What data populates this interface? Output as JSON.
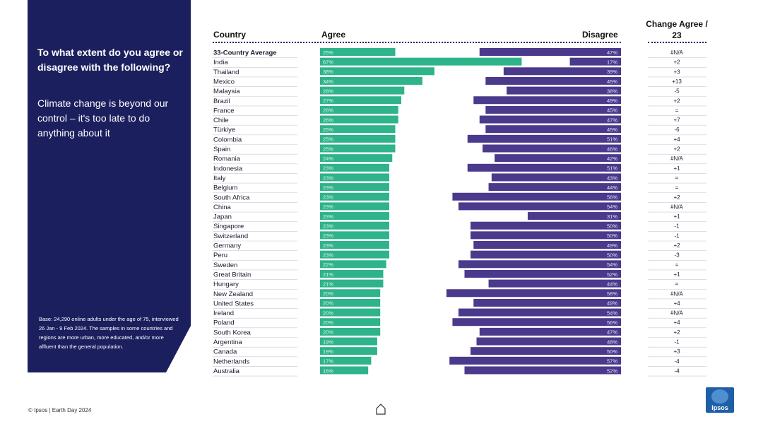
{
  "panel": {
    "question": "To what extent do you agree or disagree with the following?",
    "statement": "Climate change is beyond our control – it's too late to do anything about it",
    "base_note": "Base: 24,290 online adults under the age of 75, interviewed 26 Jan - 9 Feb 2024. The samples in some countries and regions are more urban, more educated, and/or more affluent than the general population."
  },
  "headers": {
    "country": "Country",
    "agree": "Agree",
    "disagree": "Disagree",
    "change": "Change Agree / 23"
  },
  "colors": {
    "agree": "#2fb38a",
    "disagree": "#4b3a8c",
    "panel": "#1b1f5e"
  },
  "footer": {
    "source": "© Ipsos | Earth Day 2024",
    "logo": "Ipsos"
  },
  "icons": {
    "home": "home-icon"
  },
  "chart_data": {
    "type": "bar",
    "x_range": [
      0,
      100
    ],
    "categories": [
      "33-Country Average",
      "India",
      "Thailand",
      "Mexico",
      "Malaysia",
      "Brazil",
      "France",
      "Chile",
      "Türkiye",
      "Colombia",
      "Spain",
      "Romania",
      "Indonesia",
      "Italy",
      "Belgium",
      "South Africa",
      "China",
      "Japan",
      "Singapore",
      "Switzerland",
      "Germany",
      "Peru",
      "Sweden",
      "Great Britain",
      "Hungary",
      "New Zealand",
      "United States",
      "Ireland",
      "Poland",
      "South Korea",
      "Argentina",
      "Canada",
      "Netherlands",
      "Australia"
    ],
    "series": [
      {
        "name": "Agree",
        "values": [
          25,
          67,
          38,
          34,
          28,
          27,
          26,
          26,
          25,
          25,
          25,
          24,
          23,
          23,
          23,
          23,
          23,
          23,
          23,
          23,
          23,
          23,
          22,
          21,
          21,
          20,
          20,
          20,
          20,
          20,
          19,
          19,
          17,
          16
        ]
      },
      {
        "name": "Disagree",
        "values": [
          47,
          17,
          39,
          45,
          38,
          49,
          45,
          47,
          45,
          51,
          46,
          42,
          51,
          43,
          44,
          56,
          54,
          31,
          50,
          50,
          49,
          50,
          54,
          52,
          44,
          58,
          49,
          54,
          56,
          47,
          48,
          50,
          57,
          52
        ]
      }
    ],
    "change_agree_vs_23": [
      "#N/A",
      "+2",
      "+3",
      "+13",
      "-5",
      "+2",
      "=",
      "+7",
      "-6",
      "+4",
      "+2",
      "#N/A",
      "+1",
      "=",
      "=",
      "+2",
      "#N/A",
      "+1",
      "-1",
      "-1",
      "+2",
      "-3",
      "=",
      "+1",
      "=",
      "#N/A",
      "+4",
      "#N/A",
      "+4",
      "+2",
      "-1",
      "+3",
      "-4",
      "-4"
    ]
  }
}
